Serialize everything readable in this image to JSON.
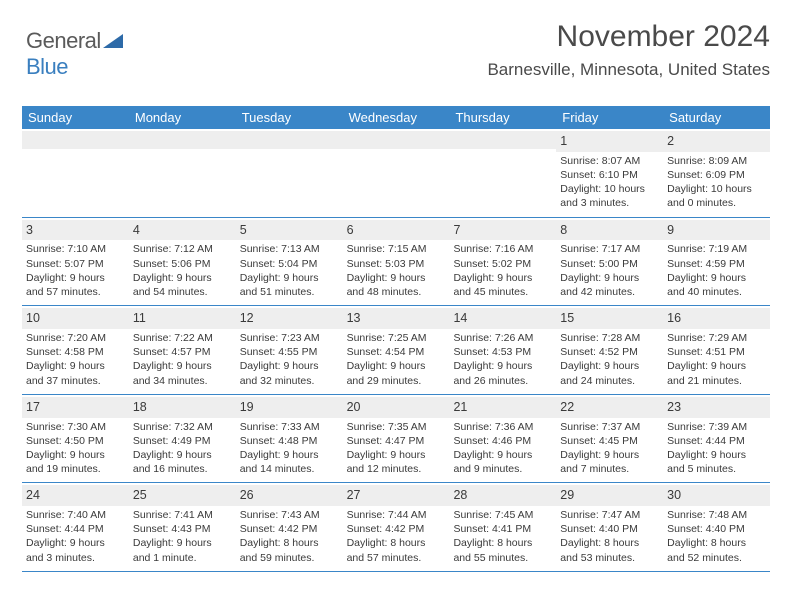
{
  "logo": {
    "line1": "General",
    "line2": "Blue"
  },
  "header": {
    "month": "November 2024",
    "location": "Barnesville, Minnesota, United States"
  },
  "colors": {
    "header_bg": "#3a86c8",
    "header_text": "#ffffff",
    "border": "#3a86c8",
    "daynum_bg": "#eeeeee",
    "text": "#3a3a3a",
    "logo_gray": "#5a5a5a",
    "logo_blue": "#3a7fbf"
  },
  "day_names": [
    "Sunday",
    "Monday",
    "Tuesday",
    "Wednesday",
    "Thursday",
    "Friday",
    "Saturday"
  ],
  "weeks": [
    [
      {
        "day": "",
        "sunrise": "",
        "sunset": "",
        "daylight": ""
      },
      {
        "day": "",
        "sunrise": "",
        "sunset": "",
        "daylight": ""
      },
      {
        "day": "",
        "sunrise": "",
        "sunset": "",
        "daylight": ""
      },
      {
        "day": "",
        "sunrise": "",
        "sunset": "",
        "daylight": ""
      },
      {
        "day": "",
        "sunrise": "",
        "sunset": "",
        "daylight": ""
      },
      {
        "day": "1",
        "sunrise": "Sunrise: 8:07 AM",
        "sunset": "Sunset: 6:10 PM",
        "daylight": "Daylight: 10 hours and 3 minutes."
      },
      {
        "day": "2",
        "sunrise": "Sunrise: 8:09 AM",
        "sunset": "Sunset: 6:09 PM",
        "daylight": "Daylight: 10 hours and 0 minutes."
      }
    ],
    [
      {
        "day": "3",
        "sunrise": "Sunrise: 7:10 AM",
        "sunset": "Sunset: 5:07 PM",
        "daylight": "Daylight: 9 hours and 57 minutes."
      },
      {
        "day": "4",
        "sunrise": "Sunrise: 7:12 AM",
        "sunset": "Sunset: 5:06 PM",
        "daylight": "Daylight: 9 hours and 54 minutes."
      },
      {
        "day": "5",
        "sunrise": "Sunrise: 7:13 AM",
        "sunset": "Sunset: 5:04 PM",
        "daylight": "Daylight: 9 hours and 51 minutes."
      },
      {
        "day": "6",
        "sunrise": "Sunrise: 7:15 AM",
        "sunset": "Sunset: 5:03 PM",
        "daylight": "Daylight: 9 hours and 48 minutes."
      },
      {
        "day": "7",
        "sunrise": "Sunrise: 7:16 AM",
        "sunset": "Sunset: 5:02 PM",
        "daylight": "Daylight: 9 hours and 45 minutes."
      },
      {
        "day": "8",
        "sunrise": "Sunrise: 7:17 AM",
        "sunset": "Sunset: 5:00 PM",
        "daylight": "Daylight: 9 hours and 42 minutes."
      },
      {
        "day": "9",
        "sunrise": "Sunrise: 7:19 AM",
        "sunset": "Sunset: 4:59 PM",
        "daylight": "Daylight: 9 hours and 40 minutes."
      }
    ],
    [
      {
        "day": "10",
        "sunrise": "Sunrise: 7:20 AM",
        "sunset": "Sunset: 4:58 PM",
        "daylight": "Daylight: 9 hours and 37 minutes."
      },
      {
        "day": "11",
        "sunrise": "Sunrise: 7:22 AM",
        "sunset": "Sunset: 4:57 PM",
        "daylight": "Daylight: 9 hours and 34 minutes."
      },
      {
        "day": "12",
        "sunrise": "Sunrise: 7:23 AM",
        "sunset": "Sunset: 4:55 PM",
        "daylight": "Daylight: 9 hours and 32 minutes."
      },
      {
        "day": "13",
        "sunrise": "Sunrise: 7:25 AM",
        "sunset": "Sunset: 4:54 PM",
        "daylight": "Daylight: 9 hours and 29 minutes."
      },
      {
        "day": "14",
        "sunrise": "Sunrise: 7:26 AM",
        "sunset": "Sunset: 4:53 PM",
        "daylight": "Daylight: 9 hours and 26 minutes."
      },
      {
        "day": "15",
        "sunrise": "Sunrise: 7:28 AM",
        "sunset": "Sunset: 4:52 PM",
        "daylight": "Daylight: 9 hours and 24 minutes."
      },
      {
        "day": "16",
        "sunrise": "Sunrise: 7:29 AM",
        "sunset": "Sunset: 4:51 PM",
        "daylight": "Daylight: 9 hours and 21 minutes."
      }
    ],
    [
      {
        "day": "17",
        "sunrise": "Sunrise: 7:30 AM",
        "sunset": "Sunset: 4:50 PM",
        "daylight": "Daylight: 9 hours and 19 minutes."
      },
      {
        "day": "18",
        "sunrise": "Sunrise: 7:32 AM",
        "sunset": "Sunset: 4:49 PM",
        "daylight": "Daylight: 9 hours and 16 minutes."
      },
      {
        "day": "19",
        "sunrise": "Sunrise: 7:33 AM",
        "sunset": "Sunset: 4:48 PM",
        "daylight": "Daylight: 9 hours and 14 minutes."
      },
      {
        "day": "20",
        "sunrise": "Sunrise: 7:35 AM",
        "sunset": "Sunset: 4:47 PM",
        "daylight": "Daylight: 9 hours and 12 minutes."
      },
      {
        "day": "21",
        "sunrise": "Sunrise: 7:36 AM",
        "sunset": "Sunset: 4:46 PM",
        "daylight": "Daylight: 9 hours and 9 minutes."
      },
      {
        "day": "22",
        "sunrise": "Sunrise: 7:37 AM",
        "sunset": "Sunset: 4:45 PM",
        "daylight": "Daylight: 9 hours and 7 minutes."
      },
      {
        "day": "23",
        "sunrise": "Sunrise: 7:39 AM",
        "sunset": "Sunset: 4:44 PM",
        "daylight": "Daylight: 9 hours and 5 minutes."
      }
    ],
    [
      {
        "day": "24",
        "sunrise": "Sunrise: 7:40 AM",
        "sunset": "Sunset: 4:44 PM",
        "daylight": "Daylight: 9 hours and 3 minutes."
      },
      {
        "day": "25",
        "sunrise": "Sunrise: 7:41 AM",
        "sunset": "Sunset: 4:43 PM",
        "daylight": "Daylight: 9 hours and 1 minute."
      },
      {
        "day": "26",
        "sunrise": "Sunrise: 7:43 AM",
        "sunset": "Sunset: 4:42 PM",
        "daylight": "Daylight: 8 hours and 59 minutes."
      },
      {
        "day": "27",
        "sunrise": "Sunrise: 7:44 AM",
        "sunset": "Sunset: 4:42 PM",
        "daylight": "Daylight: 8 hours and 57 minutes."
      },
      {
        "day": "28",
        "sunrise": "Sunrise: 7:45 AM",
        "sunset": "Sunset: 4:41 PM",
        "daylight": "Daylight: 8 hours and 55 minutes."
      },
      {
        "day": "29",
        "sunrise": "Sunrise: 7:47 AM",
        "sunset": "Sunset: 4:40 PM",
        "daylight": "Daylight: 8 hours and 53 minutes."
      },
      {
        "day": "30",
        "sunrise": "Sunrise: 7:48 AM",
        "sunset": "Sunset: 4:40 PM",
        "daylight": "Daylight: 8 hours and 52 minutes."
      }
    ]
  ]
}
